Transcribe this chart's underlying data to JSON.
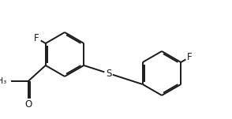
{
  "bg_color": "#ffffff",
  "bond_color": "#1a1a1a",
  "atom_color": "#1a1a1a",
  "bond_width": 1.4,
  "dbo": 0.018,
  "figsize": [
    2.94,
    1.51
  ],
  "dpi": 100,
  "xlim": [
    0.0,
    2.94
  ],
  "ylim": [
    0.0,
    1.51
  ]
}
